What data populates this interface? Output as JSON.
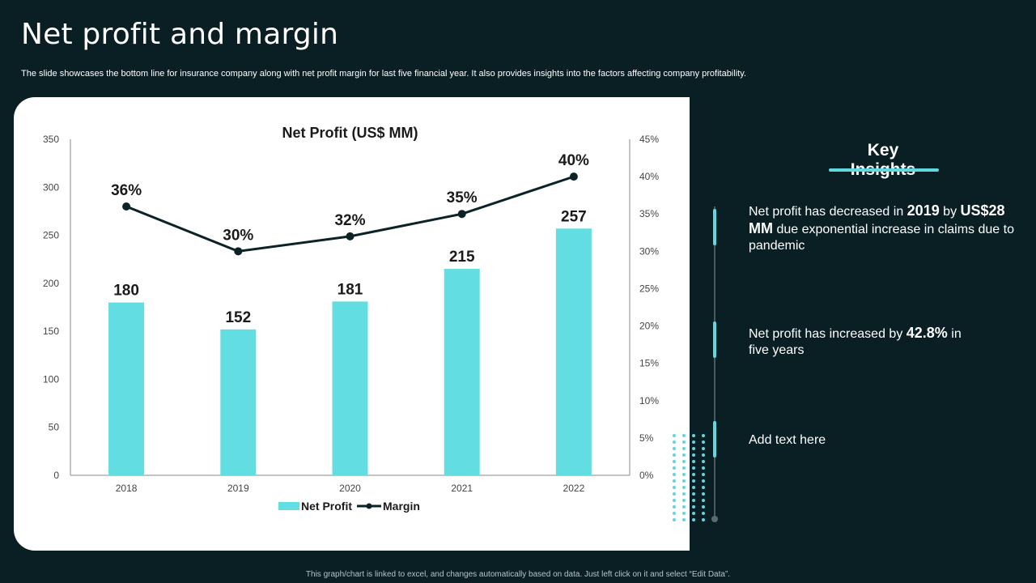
{
  "header": {
    "title": "Net profit and margin",
    "subtitle": "The slide showcases the bottom line for insurance company along with net profit margin for last five financial year. It also provides insights into the factors affecting company profitability."
  },
  "colors": {
    "bar": "#62dde1",
    "line": "#0b2227",
    "background": "#0a1f24",
    "accent": "#5fd8e0"
  },
  "chart_data": {
    "type": "bar",
    "title": "Net Profit (US$ MM)",
    "categories": [
      "2018",
      "2019",
      "2020",
      "2021",
      "2022"
    ],
    "series": [
      {
        "name": "Net Profit",
        "kind": "bar",
        "axis": "left",
        "values": [
          180,
          152,
          181,
          215,
          257
        ],
        "labels": [
          "180",
          "152",
          "181",
          "215",
          "257"
        ]
      },
      {
        "name": "Margin",
        "kind": "line",
        "axis": "right",
        "values": [
          36,
          30,
          32,
          35,
          40
        ],
        "labels": [
          "36%",
          "30%",
          "32%",
          "35%",
          "40%"
        ]
      }
    ],
    "ylim": [
      0,
      350
    ],
    "y_ticks": [
      "0",
      "50",
      "100",
      "150",
      "200",
      "250",
      "300",
      "350"
    ],
    "y2lim": [
      0,
      45
    ],
    "y2_ticks": [
      "0%",
      "5%",
      "10%",
      "15%",
      "20%",
      "25%",
      "30%",
      "35%",
      "40%",
      "45%"
    ],
    "legend": [
      "Net Profit",
      "Margin"
    ],
    "legend_position": "bottom"
  },
  "insights": {
    "title": "Key Insights",
    "items": [
      {
        "pre": "Net profit has decreased in ",
        "b1": "2019",
        "mid": " by ",
        "b2": "US$28 MM",
        "post": " due exponential increase in claims due to pandemic"
      },
      {
        "pre": "Net profit has increased by ",
        "b1": "42.8%",
        "post": " in five years"
      },
      {
        "text": "Add text here"
      }
    ]
  },
  "footer": "This graph/chart is linked to excel, and changes automatically based on data. Just left click on it and select “Edit Data”."
}
